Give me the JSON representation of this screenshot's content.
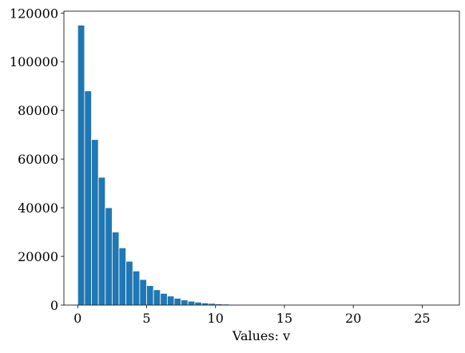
{
  "chart_data": {
    "type": "histogram",
    "xlabel": "Values: v",
    "color": "#1f77b4",
    "bins": [
      0,
      0.5,
      1,
      1.5,
      2,
      2.5,
      3,
      3.5,
      4,
      4.5,
      5,
      5.5,
      6,
      6.5,
      7,
      7.5,
      8,
      8.5,
      9,
      9.5,
      10,
      10.5,
      11,
      11.5,
      12,
      12.5,
      13,
      13.5,
      14,
      14.5,
      15,
      15.5,
      16,
      16.5,
      17,
      17.5,
      18,
      18.5,
      19,
      19.5,
      20,
      20.5,
      21,
      21.5,
      22,
      22.5,
      23,
      23.5,
      24,
      24.5,
      25,
      25.5,
      26,
      26.5
    ],
    "values": [
      115000,
      88000,
      68000,
      52500,
      40000,
      30000,
      23500,
      18000,
      14000,
      10500,
      8000,
      6300,
      4800,
      3700,
      2800,
      2100,
      1600,
      1200,
      900,
      700,
      500,
      400,
      300,
      200,
      150,
      100,
      80,
      60,
      40,
      30,
      23,
      18,
      14,
      10,
      8,
      6,
      5,
      4,
      3,
      2,
      2,
      1,
      1,
      1,
      1,
      0,
      0,
      1,
      0,
      0,
      0,
      0,
      1
    ],
    "xlim": [
      -1.0,
      27.7
    ],
    "ylim": [
      0,
      120750
    ],
    "xticks": [
      0,
      5,
      10,
      15,
      20,
      25
    ],
    "yticks": [
      0,
      20000,
      40000,
      60000,
      80000,
      100000,
      120000
    ]
  }
}
